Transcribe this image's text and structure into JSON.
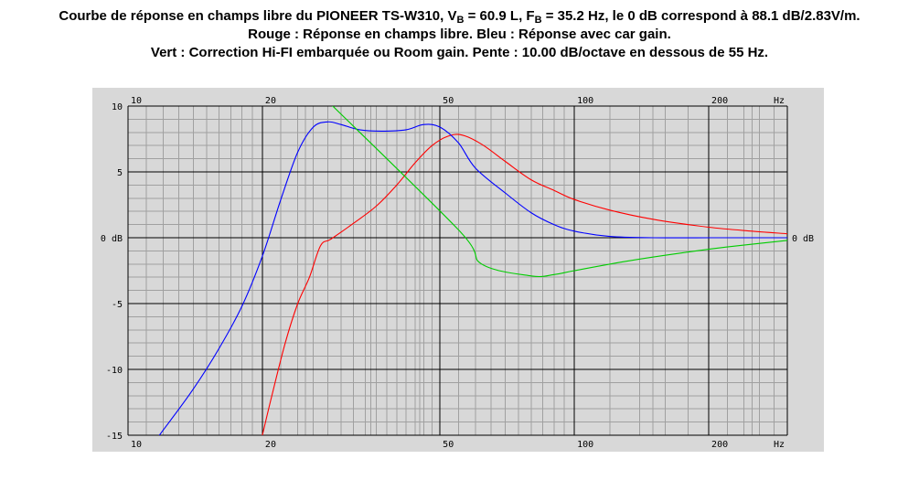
{
  "title": {
    "line1_prefix": "Courbe de réponse en champs libre du PIONEER TS-W310, V",
    "vb_sub": "B",
    "vb_value": " = 60.9 L, F",
    "fb_sub": "B",
    "line1_suffix": " = 35.2 Hz, le 0 dB correspond à 88.1 dB/2.83V/m.",
    "line2": "Rouge : Réponse en champs libre. Bleu : Réponse avec car gain.",
    "line3": "Vert : Correction Hi-FI embarquée ou Room gain. Pente : 10.00 dB/octave en dessous de 55 Hz."
  },
  "colors": {
    "background": "#d8d8d8",
    "grid_major": "#000000",
    "grid_minor": "#a0a0a0",
    "free_field": "#ff0000",
    "car_gain": "#0000ff",
    "correction": "#00cc00"
  },
  "chart_data": {
    "type": "line",
    "x_scale": "log",
    "xlim": [
      10,
      300
    ],
    "ylim": [
      -15,
      10
    ],
    "grid": true,
    "x_ticks": [
      {
        "value": 10,
        "label": "10"
      },
      {
        "value": 20,
        "label": "20"
      },
      {
        "value": 50,
        "label": "50"
      },
      {
        "value": 100,
        "label": "100"
      },
      {
        "value": 200,
        "label": "200"
      }
    ],
    "x_unit": "Hz",
    "y_ticks": [
      {
        "value": 10,
        "label": "10"
      },
      {
        "value": 5,
        "label": "5"
      },
      {
        "value": 0,
        "label": "0 dB"
      },
      {
        "value": -5,
        "label": "-5"
      },
      {
        "value": -10,
        "label": "-10"
      },
      {
        "value": -15,
        "label": "-15"
      }
    ],
    "right_label": {
      "value": 0,
      "label": "0 dB"
    },
    "series": [
      {
        "key": "free_field",
        "color": "#ff0000",
        "points": [
          [
            20,
            -15
          ],
          [
            21,
            -12
          ],
          [
            22.5,
            -8
          ],
          [
            24,
            -5
          ],
          [
            25.5,
            -3
          ],
          [
            27,
            -0.6
          ],
          [
            28.5,
            -0.1
          ],
          [
            32,
            1.1
          ],
          [
            36,
            2.4
          ],
          [
            40,
            4
          ],
          [
            44,
            5.7
          ],
          [
            48,
            7
          ],
          [
            52,
            7.7
          ],
          [
            56,
            7.8
          ],
          [
            62,
            7.1
          ],
          [
            70,
            5.8
          ],
          [
            80,
            4.4
          ],
          [
            90,
            3.6
          ],
          [
            100,
            2.9
          ],
          [
            120,
            2.1
          ],
          [
            150,
            1.4
          ],
          [
            200,
            0.8
          ],
          [
            250,
            0.5
          ],
          [
            300,
            0.3
          ]
        ]
      },
      {
        "key": "car_gain",
        "color": "#0000ff",
        "points": [
          [
            11,
            -16.3
          ],
          [
            12,
            -14.6
          ],
          [
            14,
            -11.5
          ],
          [
            16,
            -8.4
          ],
          [
            18,
            -5.2
          ],
          [
            20,
            -1.4
          ],
          [
            22,
            2.9
          ],
          [
            24,
            6.5
          ],
          [
            26,
            8.4
          ],
          [
            28,
            8.8
          ],
          [
            30,
            8.6
          ],
          [
            33,
            8.2
          ],
          [
            37,
            8.1
          ],
          [
            42,
            8.2
          ],
          [
            46,
            8.6
          ],
          [
            50,
            8.4
          ],
          [
            55,
            7.2
          ],
          [
            60,
            5.3
          ],
          [
            70,
            3.4
          ],
          [
            80,
            1.9
          ],
          [
            90,
            1
          ],
          [
            100,
            0.5
          ],
          [
            120,
            0.1
          ],
          [
            150,
            0
          ],
          [
            200,
            0
          ],
          [
            300,
            0
          ]
        ]
      },
      {
        "key": "correction",
        "color": "#00cc00",
        "points": [
          [
            27,
            10.9
          ],
          [
            55,
            0.6
          ],
          [
            62,
            -2
          ],
          [
            80,
            -2.9
          ],
          [
            90,
            -2.8
          ],
          [
            100,
            -2.5
          ],
          [
            130,
            -1.8
          ],
          [
            170,
            -1.2
          ],
          [
            220,
            -0.7
          ],
          [
            300,
            -0.2
          ]
        ]
      }
    ]
  }
}
